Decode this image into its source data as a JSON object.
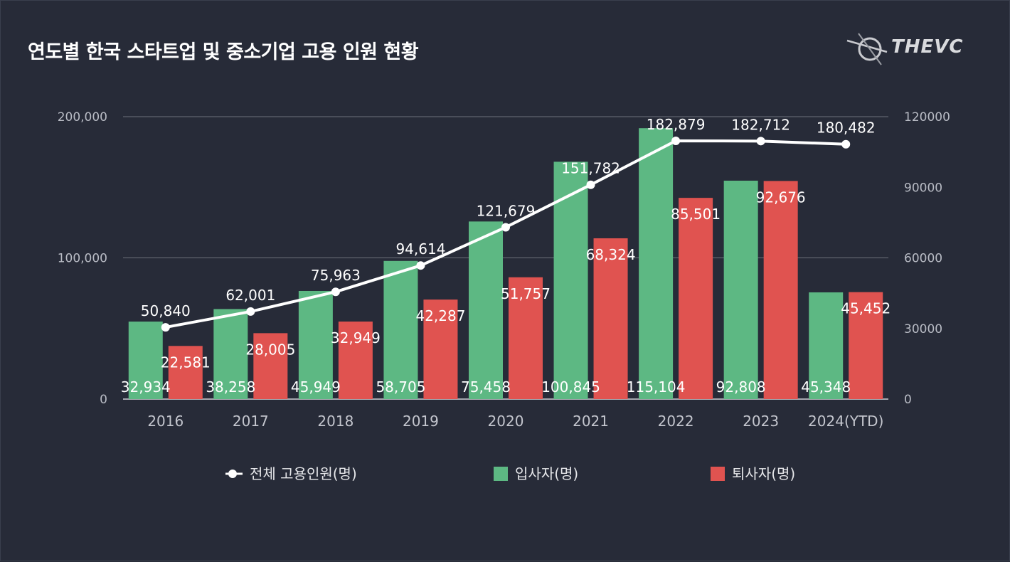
{
  "header": {
    "title": "연도별 한국 스타트업 및 중소기업 고용 인원 현황",
    "logo_text": "THEVC"
  },
  "colors": {
    "background": "#272b38",
    "hires": "#5db883",
    "resigns": "#e05350",
    "line": "#ffffff",
    "grid": "#8a8d96"
  },
  "chart_data": {
    "type": "bar",
    "categories": [
      "2016",
      "2017",
      "2018",
      "2019",
      "2020",
      "2021",
      "2022",
      "2023",
      "2024(YTD)"
    ],
    "series": [
      {
        "name": "전체 고용인원(명)",
        "type": "line",
        "axis": "left",
        "values": [
          50840,
          62001,
          75963,
          94614,
          121679,
          151782,
          182879,
          182712,
          180482
        ],
        "labels": [
          "50,840",
          "62,001",
          "75,963",
          "94,614",
          "121,679",
          "151,782",
          "182,879",
          "182,712",
          "180,482"
        ]
      },
      {
        "name": "입사자(명)",
        "type": "bar",
        "axis": "right",
        "values": [
          32934,
          38258,
          45949,
          58705,
          75458,
          100845,
          115104,
          92808,
          45348
        ],
        "labels": [
          "32,934",
          "38,258",
          "45,949",
          "58,705",
          "75,458",
          "100,845",
          "115,104",
          "92,808",
          "45,348"
        ]
      },
      {
        "name": "퇴사자(명)",
        "type": "bar",
        "axis": "right",
        "values": [
          22581,
          28005,
          32949,
          42287,
          51757,
          68324,
          85501,
          92676,
          45452
        ],
        "labels": [
          "22,581",
          "28,005",
          "32,949",
          "42,287",
          "51,757",
          "68,324",
          "85,501",
          "92,676",
          "45,452"
        ]
      }
    ],
    "left_axis": {
      "ylim": [
        0,
        200000
      ],
      "ticks": [
        "0",
        "100,000",
        "200,000"
      ]
    },
    "right_axis": {
      "ylim": [
        0,
        120000
      ],
      "ticks": [
        "0",
        "30000",
        "60000",
        "90000",
        "120000"
      ]
    },
    "grid": true,
    "legend_position": "bottom"
  }
}
